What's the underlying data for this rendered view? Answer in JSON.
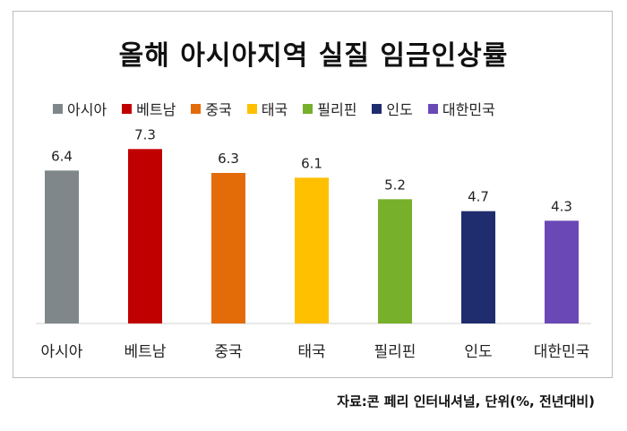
{
  "chart_data": {
    "type": "bar",
    "title": "올해 아시아지역 실질 임금인상률",
    "categories": [
      "아시아",
      "베트남",
      "중국",
      "태국",
      "필리핀",
      "인도",
      "대한민국"
    ],
    "values": [
      6.4,
      7.3,
      6.3,
      6.1,
      5.2,
      4.7,
      4.3
    ],
    "value_labels": [
      "6.4",
      "7.3",
      "6.3",
      "6.1",
      "5.2",
      "4.7",
      "4.3"
    ],
    "colors": [
      "#7f878b",
      "#c00000",
      "#e36c09",
      "#ffc000",
      "#77b02a",
      "#1f2d6e",
      "#6a48b5"
    ],
    "legend_position": "top",
    "grid": false,
    "ylim": [
      0,
      8.1
    ],
    "source_note": "자료:콘 페리 인터내셔널, 단위(%, 전년대비)"
  }
}
